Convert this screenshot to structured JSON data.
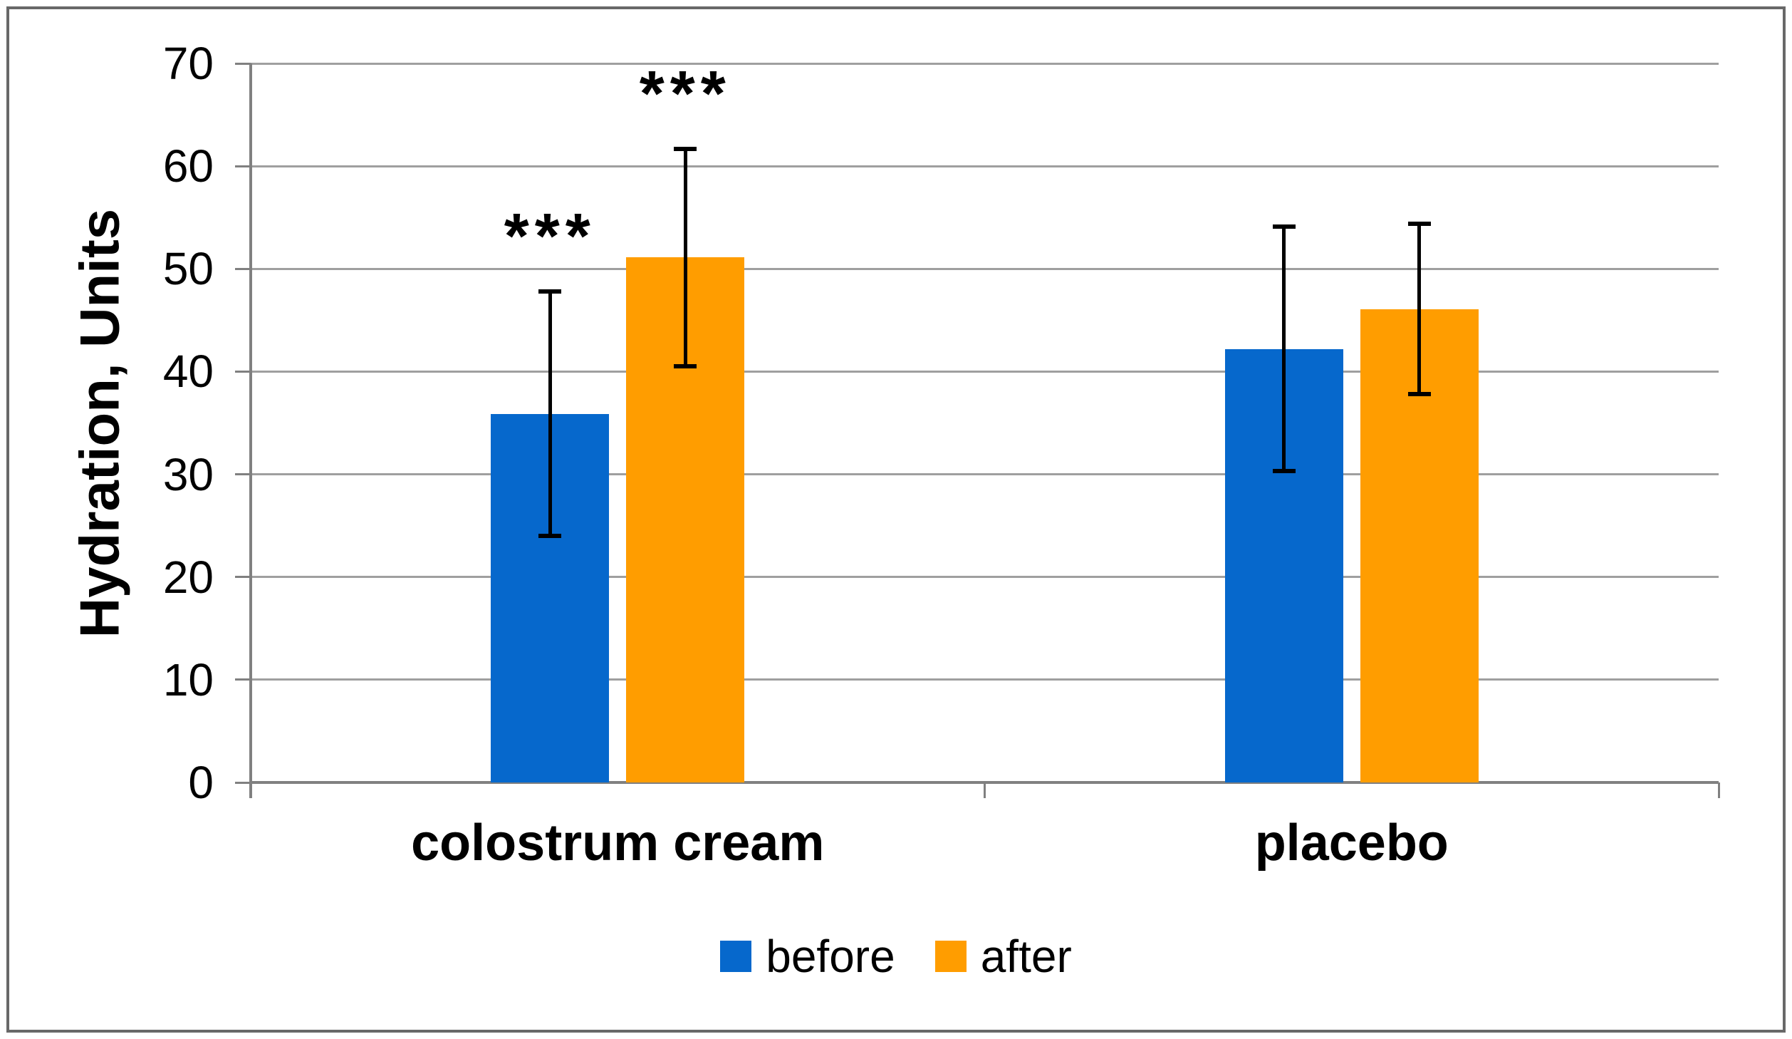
{
  "figure": {
    "background": "#ffffff",
    "border_color": "#686868"
  },
  "chart_data": {
    "type": "bar",
    "title": "",
    "xlabel": "",
    "ylabel": "Hydration, Units",
    "ylim": [
      0,
      70
    ],
    "yticks": [
      0,
      10,
      20,
      30,
      40,
      50,
      60,
      70
    ],
    "grid": true,
    "legend_position": "bottom",
    "categories": [
      "colostrum cream",
      "placebo"
    ],
    "series": [
      {
        "name": "before",
        "color": "#0668CC",
        "values": [
          35.9,
          42.2
        ],
        "errors": [
          11.9,
          11.9
        ]
      },
      {
        "name": "after",
        "color": "#FF9D00",
        "values": [
          51.1,
          46.1
        ],
        "errors": [
          10.6,
          8.3
        ]
      }
    ],
    "annotations": [
      {
        "text": "***",
        "category_index": 0,
        "series_index": 0
      },
      {
        "text": "***",
        "category_index": 0,
        "series_index": 1
      }
    ],
    "colors": {
      "gridline": "#9f9f9f",
      "axis": "#808080",
      "error_bar": "#000000"
    }
  }
}
